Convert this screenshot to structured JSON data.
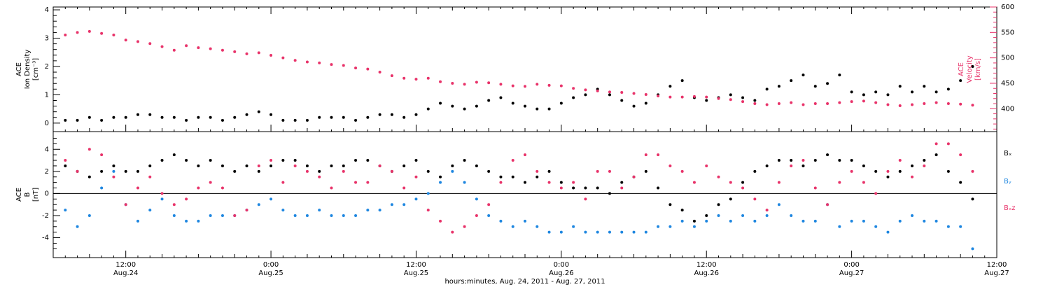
{
  "colors": {
    "black": "#000000",
    "pink": "#e8336a",
    "blue": "#1f87e0"
  },
  "footer": {
    "xlabel": "hours:minutes, Aug. 24, 2011 - Aug. 27, 2011"
  },
  "x_axis": {
    "range_hours": [
      6,
      84
    ],
    "ticks": [
      {
        "h": 12,
        "time": "12:00",
        "date": "Aug.24"
      },
      {
        "h": 24,
        "time": "0:00",
        "date": "Aug.25"
      },
      {
        "h": 36,
        "time": "12:00",
        "date": "Aug.25"
      },
      {
        "h": 48,
        "time": "0:00",
        "date": "Aug.26"
      },
      {
        "h": 60,
        "time": "12:00",
        "date": "Aug.26"
      },
      {
        "h": 72,
        "time": "0:00",
        "date": "Aug.27"
      },
      {
        "h": 84,
        "time": "12:00",
        "date": "Aug.27"
      }
    ]
  },
  "chart_data": [
    {
      "type": "scatter",
      "panel": "top",
      "ylabel_left": [
        "ACE",
        "Ion Density",
        "[cm⁻³]"
      ],
      "ylabel_right": [
        "ACE",
        "Velocity",
        "[km/s]"
      ],
      "ylim_left": [
        -0.3,
        4.1
      ],
      "ylim_right": [
        355,
        600
      ],
      "yticks_left": [
        0,
        1,
        2,
        3,
        4
      ],
      "yticks_right": [
        400,
        450,
        500,
        550,
        600
      ],
      "series": [
        {
          "axis": "left",
          "color": "#000000",
          "x": [
            7,
            8,
            9,
            10,
            11,
            12,
            13,
            14,
            15,
            16,
            17,
            18,
            19,
            20,
            21,
            22,
            23,
            24,
            25,
            26,
            27,
            28,
            29,
            30,
            31,
            32,
            33,
            34,
            35,
            36,
            37,
            38,
            39,
            40,
            41,
            42,
            43,
            44,
            45,
            46,
            47,
            48,
            49,
            50,
            51,
            52,
            53,
            54,
            55,
            56,
            57,
            58,
            59,
            60,
            61,
            62,
            63,
            64,
            65,
            66,
            67,
            68,
            69,
            70,
            71,
            72,
            73,
            74,
            75,
            76,
            77,
            78,
            79,
            80,
            81,
            82
          ],
          "y": [
            0.1,
            0.1,
            0.2,
            0.1,
            0.2,
            0.2,
            0.3,
            0.3,
            0.2,
            0.2,
            0.1,
            0.2,
            0.2,
            0.1,
            0.2,
            0.3,
            0.4,
            0.3,
            0.1,
            0.1,
            0.1,
            0.2,
            0.2,
            0.2,
            0.1,
            0.2,
            0.3,
            0.3,
            0.2,
            0.3,
            0.5,
            0.7,
            0.6,
            0.5,
            0.6,
            0.8,
            0.9,
            0.7,
            0.6,
            0.5,
            0.5,
            0.7,
            0.9,
            1.0,
            1.2,
            1.0,
            0.8,
            0.6,
            0.7,
            1.0,
            1.3,
            1.5,
            0.9,
            0.8,
            0.9,
            1.0,
            0.9,
            0.8,
            1.2,
            1.3,
            1.5,
            1.7,
            1.3,
            1.4,
            1.7,
            1.1,
            1.0,
            1.1,
            1.0,
            1.3,
            1.1,
            1.3,
            1.1,
            1.2,
            1.5,
            2.0
          ]
        },
        {
          "axis": "right",
          "color": "#e8336a",
          "x": [
            7,
            8,
            9,
            10,
            11,
            12,
            13,
            14,
            15,
            16,
            17,
            18,
            19,
            20,
            21,
            22,
            23,
            24,
            25,
            26,
            27,
            28,
            29,
            30,
            31,
            32,
            33,
            34,
            35,
            36,
            37,
            38,
            39,
            40,
            41,
            42,
            43,
            44,
            45,
            46,
            47,
            48,
            49,
            50,
            51,
            52,
            53,
            54,
            55,
            56,
            57,
            58,
            59,
            60,
            61,
            62,
            63,
            64,
            65,
            66,
            67,
            68,
            69,
            70,
            71,
            72,
            73,
            74,
            75,
            76,
            77,
            78,
            79,
            80,
            81,
            82
          ],
          "y": [
            545,
            550,
            552,
            548,
            545,
            535,
            532,
            528,
            522,
            515,
            524,
            520,
            518,
            515,
            512,
            508,
            510,
            505,
            500,
            495,
            492,
            490,
            487,
            485,
            480,
            478,
            472,
            465,
            460,
            458,
            460,
            453,
            450,
            448,
            452,
            451,
            448,
            445,
            444,
            448,
            446,
            445,
            440,
            437,
            435,
            433,
            432,
            430,
            428,
            425,
            423,
            423,
            424,
            423,
            420,
            418,
            414,
            410,
            408,
            410,
            412,
            408,
            410,
            410,
            412,
            414,
            415,
            412,
            408,
            406,
            408,
            410,
            412,
            410,
            409,
            407
          ]
        }
      ]
    },
    {
      "type": "scatter",
      "panel": "bottom",
      "ylabel_left": [
        "ACE",
        "B",
        "[nT]"
      ],
      "ylim": [
        -5.8,
        5.6
      ],
      "yticks": [
        -4,
        -2,
        0,
        2,
        4
      ],
      "zero_line": true,
      "series": [
        {
          "name": "Bₓ",
          "color": "#000000",
          "x": [
            7,
            8,
            9,
            10,
            11,
            12,
            13,
            14,
            15,
            16,
            17,
            18,
            19,
            20,
            21,
            22,
            23,
            24,
            25,
            26,
            27,
            28,
            29,
            30,
            31,
            32,
            33,
            34,
            35,
            36,
            37,
            38,
            39,
            40,
            41,
            42,
            43,
            44,
            45,
            46,
            47,
            48,
            49,
            50,
            51,
            52,
            53,
            54,
            55,
            56,
            57,
            58,
            59,
            60,
            61,
            62,
            63,
            64,
            65,
            66,
            67,
            68,
            69,
            70,
            71,
            72,
            73,
            74,
            75,
            76,
            77,
            78,
            79,
            80,
            81,
            82
          ],
          "y": [
            2.5,
            2.0,
            1.5,
            2.0,
            2.5,
            2.0,
            2.0,
            2.5,
            3.0,
            3.5,
            3.0,
            2.5,
            3.0,
            2.5,
            2.0,
            2.5,
            2.0,
            2.5,
            3.0,
            3.0,
            2.5,
            2.0,
            2.5,
            2.5,
            3.0,
            3.0,
            2.5,
            2.0,
            2.5,
            3.0,
            2.0,
            1.5,
            2.5,
            3.0,
            2.5,
            2.0,
            1.5,
            1.5,
            1.0,
            1.5,
            2.0,
            1.0,
            0.5,
            0.5,
            0.5,
            0.0,
            1.0,
            1.5,
            2.0,
            0.5,
            -1.0,
            -1.5,
            -2.5,
            -2.0,
            -1.0,
            -0.5,
            1.0,
            2.0,
            2.5,
            3.0,
            3.0,
            2.5,
            3.0,
            3.5,
            3.0,
            3.0,
            2.5,
            2.0,
            1.5,
            2.0,
            2.5,
            3.0,
            3.5,
            2.0,
            1.0,
            -0.5
          ]
        },
        {
          "name": "Bᵧ",
          "color": "#1f87e0",
          "x": [
            7,
            8,
            9,
            10,
            11,
            12,
            13,
            14,
            15,
            16,
            17,
            18,
            19,
            20,
            21,
            22,
            23,
            24,
            25,
            26,
            27,
            28,
            29,
            30,
            31,
            32,
            33,
            34,
            35,
            36,
            37,
            38,
            39,
            40,
            41,
            42,
            43,
            44,
            45,
            46,
            47,
            48,
            49,
            50,
            51,
            52,
            53,
            54,
            55,
            56,
            57,
            58,
            59,
            60,
            61,
            62,
            63,
            64,
            65,
            66,
            67,
            68,
            69,
            70,
            71,
            72,
            73,
            74,
            75,
            76,
            77,
            78,
            79,
            80,
            81,
            82
          ],
          "y": [
            -1.5,
            -3.0,
            -2.0,
            0.5,
            2.0,
            -1.0,
            -2.5,
            -1.5,
            -0.5,
            -2.0,
            -2.5,
            -2.5,
            -2.0,
            -2.0,
            -2.0,
            -1.5,
            -1.0,
            -0.5,
            -1.5,
            -2.0,
            -2.0,
            -1.5,
            -2.0,
            -2.0,
            -2.0,
            -1.5,
            -1.5,
            -1.0,
            -1.0,
            -0.5,
            0.0,
            1.0,
            2.0,
            1.0,
            -0.5,
            -2.0,
            -2.5,
            -3.0,
            -2.5,
            -3.0,
            -3.5,
            -3.5,
            -3.0,
            -3.5,
            -3.5,
            -3.5,
            -3.5,
            -3.5,
            -3.5,
            -3.0,
            -3.0,
            -2.5,
            -3.0,
            -2.5,
            -2.0,
            -2.5,
            -2.0,
            -2.5,
            -2.0,
            -1.0,
            -2.0,
            -2.5,
            -2.5,
            -1.0,
            -3.0,
            -2.5,
            -2.5,
            -3.0,
            -3.5,
            -2.5,
            -2.0,
            -2.5,
            -2.5,
            -3.0,
            -3.0,
            -5.0
          ]
        },
        {
          "name": "Bₓz",
          "color": "#e8336a",
          "x": [
            7,
            8,
            9,
            10,
            11,
            12,
            13,
            14,
            15,
            16,
            17,
            18,
            19,
            20,
            21,
            22,
            23,
            24,
            25,
            26,
            27,
            28,
            29,
            30,
            31,
            32,
            33,
            34,
            35,
            36,
            37,
            38,
            39,
            40,
            41,
            42,
            43,
            44,
            45,
            46,
            47,
            48,
            49,
            50,
            51,
            52,
            53,
            54,
            55,
            56,
            57,
            58,
            59,
            60,
            61,
            62,
            63,
            64,
            65,
            66,
            67,
            68,
            69,
            70,
            71,
            72,
            73,
            74,
            75,
            76,
            77,
            78,
            79,
            80,
            81,
            82
          ],
          "y": [
            3.0,
            2.0,
            4.0,
            3.5,
            1.5,
            -1.0,
            0.5,
            1.5,
            0.0,
            -1.0,
            -0.5,
            0.5,
            1.0,
            0.5,
            -2.0,
            -1.5,
            2.5,
            3.0,
            1.0,
            2.5,
            2.0,
            1.5,
            0.5,
            2.0,
            1.0,
            1.0,
            2.5,
            2.0,
            0.5,
            1.5,
            -1.5,
            -2.5,
            -3.5,
            -3.0,
            -2.0,
            -1.0,
            1.0,
            3.0,
            3.5,
            2.0,
            1.0,
            0.5,
            1.0,
            -0.5,
            2.0,
            2.0,
            0.5,
            1.5,
            3.5,
            3.5,
            2.5,
            2.0,
            1.0,
            2.5,
            1.5,
            1.0,
            0.5,
            -0.5,
            -1.5,
            1.0,
            2.5,
            3.0,
            0.5,
            -1.0,
            1.0,
            2.0,
            1.0,
            0.0,
            2.0,
            3.0,
            1.5,
            2.5,
            4.5,
            4.5,
            3.5,
            2.0
          ]
        }
      ]
    }
  ]
}
